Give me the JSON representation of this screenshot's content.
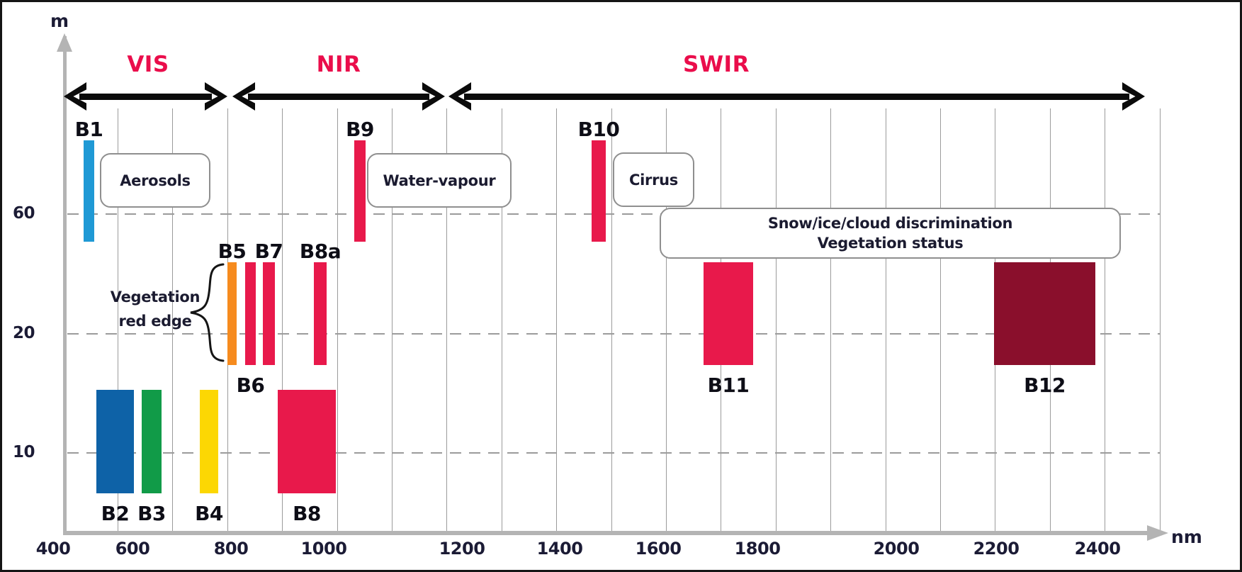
{
  "chart_data": {
    "type": "bar",
    "title": "",
    "xlabel": "nm",
    "ylabel": "m",
    "x_ticks": [
      400,
      600,
      800,
      1000,
      1200,
      1400,
      1600,
      1800,
      2000,
      2200,
      2400
    ],
    "y_ticks": [
      60,
      20,
      10
    ],
    "x_axis_range_nm": [
      400,
      2500
    ],
    "grid": "on",
    "regions": [
      {
        "id": "VIS",
        "label": "VIS"
      },
      {
        "id": "NIR",
        "label": "NIR"
      },
      {
        "id": "SWIR",
        "label": "SWIR"
      }
    ],
    "bands": [
      {
        "id": "B1",
        "label": "B1",
        "resolution_m": 60,
        "center_nm": 443,
        "width_nm": 20,
        "color": "#1f99d5"
      },
      {
        "id": "B2",
        "label": "B2",
        "resolution_m": 10,
        "center_nm": 490,
        "width_nm": 65,
        "color": "#0e62a7"
      },
      {
        "id": "B3",
        "label": "B3",
        "resolution_m": 10,
        "center_nm": 560,
        "width_nm": 35,
        "color": "#119b48"
      },
      {
        "id": "B4",
        "label": "B4",
        "resolution_m": 10,
        "center_nm": 665,
        "width_nm": 30,
        "color": "#fcd703"
      },
      {
        "id": "B5",
        "label": "B5",
        "resolution_m": 20,
        "center_nm": 705,
        "width_nm": 15,
        "color": "#f68b1e"
      },
      {
        "id": "B6",
        "label": "B6",
        "resolution_m": 20,
        "center_nm": 740,
        "width_nm": 15,
        "color": "#e8194b"
      },
      {
        "id": "B7",
        "label": "B7",
        "resolution_m": 20,
        "center_nm": 783,
        "width_nm": 20,
        "color": "#e8194b"
      },
      {
        "id": "B8",
        "label": "B8",
        "resolution_m": 10,
        "center_nm": 842,
        "width_nm": 115,
        "color": "#e8194b"
      },
      {
        "id": "B8a",
        "label": "B8a",
        "resolution_m": 20,
        "center_nm": 865,
        "width_nm": 20,
        "color": "#e8194b"
      },
      {
        "id": "B9",
        "label": "B9",
        "resolution_m": 60,
        "center_nm": 945,
        "width_nm": 20,
        "color": "#e8194b"
      },
      {
        "id": "B10",
        "label": "B10",
        "resolution_m": 60,
        "center_nm": 1375,
        "width_nm": 30,
        "color": "#e8194b"
      },
      {
        "id": "B11",
        "label": "B11",
        "resolution_m": 20,
        "center_nm": 1610,
        "width_nm": 90,
        "color": "#e8194b"
      },
      {
        "id": "B12",
        "label": "B12",
        "resolution_m": 20,
        "center_nm": 2190,
        "width_nm": 180,
        "color": "#8a0f2c"
      }
    ],
    "annotations": [
      {
        "id": "aerosols",
        "lines": [
          "Aerosols"
        ]
      },
      {
        "id": "water-vapour",
        "lines": [
          "Water-vapour"
        ]
      },
      {
        "id": "cirrus",
        "lines": [
          "Cirrus"
        ]
      },
      {
        "id": "snow-ice",
        "lines": [
          "Snow/ice/cloud discrimination",
          "Vegetation status"
        ]
      },
      {
        "id": "veg-red-edge",
        "lines": [
          "Vegetation",
          "red edge"
        ]
      }
    ],
    "colors": {
      "region_label": "#ea0d4b",
      "crimson_band": "#e8194b",
      "maroon_band": "#8a0f2c",
      "axis_gray": "#b4b4b4",
      "grid_gray": "#9b9b9b",
      "text_dark": "#1b1b35",
      "arrow_black": "#0b0b0b",
      "box_border": "#8f8f8f",
      "background": "#ffffff"
    }
  }
}
